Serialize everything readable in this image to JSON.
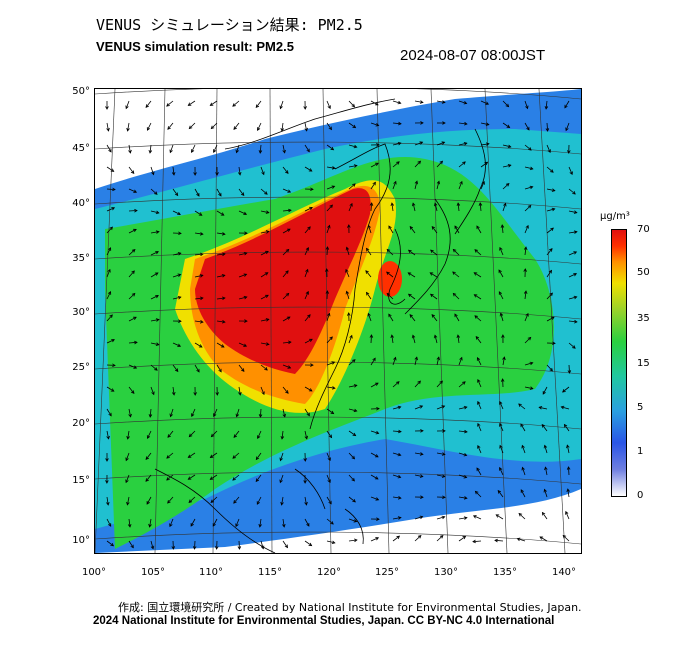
{
  "title_jp": "VENUS シミュレーション結果: PM2.5",
  "title_en": "VENUS simulation result: PM2.5",
  "timestamp": "2024-08-07 08:00JST",
  "lat_labels": [
    "50°",
    "45°",
    "40°",
    "35°",
    "30°",
    "25°",
    "20°",
    "15°",
    "10°"
  ],
  "lon_labels": [
    "100°",
    "105°",
    "110°",
    "115°",
    "120°",
    "125°",
    "130°",
    "135°",
    "140°"
  ],
  "colorbar": {
    "unit": "μg/m³",
    "ticks": [
      "70",
      "50",
      "35",
      "15",
      "5",
      "1",
      "0"
    ],
    "colors": {
      "high": "#e01010",
      "orange": "#ff9000",
      "yellow": "#f0e000",
      "green": "#2ad040",
      "cyan": "#2aa0e0",
      "blue": "#2a55e6",
      "white": "#ffffff"
    }
  },
  "credit_jp": "作成: 国立環境研究所 / Created by National Institute for Environmental Studies, Japan.",
  "credit_en": "2024 National Institute for Environmental Studies, Japan. CC BY-NC 4.0 International"
}
